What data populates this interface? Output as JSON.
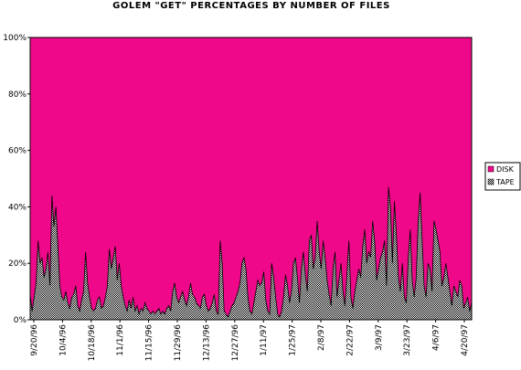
{
  "chart_data": {
    "type": "area",
    "title": "GOLEM \"GET\" PERCENTAGES BY NUMBER OF FILES",
    "xlabel": "",
    "ylabel": "",
    "ylim": [
      0,
      100
    ],
    "y_ticks": [
      "0%",
      "20%",
      "40%",
      "60%",
      "80%",
      "100%"
    ],
    "x_tick_labels": [
      "9/20/96",
      "10/4/96",
      "10/18/96",
      "11/1/96",
      "11/15/96",
      "11/29/96",
      "12/13/96",
      "12/27/96",
      "1/11/97",
      "1/25/97",
      "2/8/97",
      "2/22/97",
      "3/9/97",
      "3/23/97",
      "4/6/97",
      "4/20/97"
    ],
    "stacked": true,
    "series": [
      {
        "name": "DISK",
        "color": "#f0088a",
        "pattern": "solid"
      },
      {
        "name": "TAPE",
        "color": "#9a9a9a",
        "pattern": "dotted-gray"
      }
    ],
    "tape_values": [
      9,
      3,
      8,
      13,
      28,
      20,
      22,
      15,
      18,
      24,
      12,
      44,
      33,
      40,
      26,
      12,
      8,
      7,
      10,
      6,
      4,
      8,
      9,
      12,
      5,
      3,
      7,
      10,
      24,
      13,
      8,
      4,
      3,
      4,
      7,
      8,
      4,
      5,
      8,
      12,
      25,
      18,
      22,
      26,
      14,
      20,
      12,
      8,
      5,
      3,
      7,
      4,
      8,
      3,
      5,
      2,
      4,
      3,
      6,
      4,
      3,
      2,
      3,
      2,
      3,
      4,
      2,
      3,
      2,
      4,
      5,
      3,
      10,
      13,
      8,
      6,
      8,
      10,
      7,
      5,
      8,
      13,
      9,
      8,
      6,
      5,
      4,
      8,
      9,
      5,
      3,
      4,
      6,
      9,
      3,
      2,
      28,
      20,
      3,
      2,
      1,
      3,
      5,
      6,
      8,
      10,
      13,
      20,
      22,
      18,
      8,
      3,
      2,
      6,
      10,
      14,
      12,
      13,
      17,
      7,
      3,
      2,
      20,
      15,
      8,
      2,
      1,
      3,
      8,
      16,
      12,
      6,
      10,
      20,
      22,
      15,
      6,
      18,
      24,
      16,
      10,
      28,
      30,
      18,
      22,
      35,
      24,
      18,
      28,
      22,
      14,
      9,
      5,
      18,
      24,
      8,
      14,
      20,
      10,
      5,
      16,
      28,
      8,
      4,
      10,
      14,
      18,
      15,
      26,
      32,
      20,
      24,
      22,
      35,
      28,
      14,
      18,
      22,
      24,
      28,
      12,
      47,
      40,
      20,
      42,
      30,
      15,
      10,
      20,
      8,
      6,
      22,
      32,
      14,
      8,
      15,
      35,
      45,
      28,
      12,
      8,
      20,
      18,
      10,
      35,
      32,
      28,
      24,
      12,
      15,
      20,
      15,
      10,
      5,
      12,
      10,
      8,
      14,
      12,
      4,
      6,
      8,
      3,
      6
    ]
  }
}
